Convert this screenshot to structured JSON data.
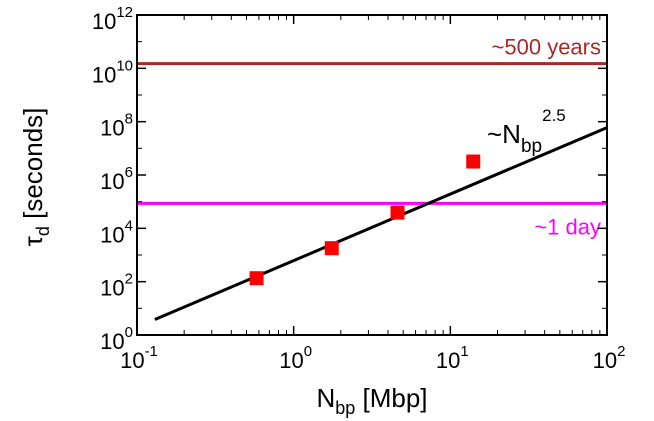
{
  "chart_data": {
    "type": "scatter",
    "x_scale": "log",
    "y_scale": "log",
    "xlim": [
      0.1,
      100
    ],
    "ylim": [
      1,
      1000000000000
    ],
    "grid": false,
    "x_ticks": [
      {
        "value": 0.1,
        "base": "10",
        "exp": "-1"
      },
      {
        "value": 1,
        "base": "10",
        "exp": "0"
      },
      {
        "value": 10,
        "base": "10",
        "exp": "1"
      },
      {
        "value": 100,
        "base": "10",
        "exp": "2"
      }
    ],
    "y_ticks": [
      {
        "value": 1,
        "base": "10",
        "exp": "0"
      },
      {
        "value": 100,
        "base": "10",
        "exp": "2"
      },
      {
        "value": 10000,
        "base": "10",
        "exp": "4"
      },
      {
        "value": 1000000,
        "base": "10",
        "exp": "6"
      },
      {
        "value": 100000000,
        "base": "10",
        "exp": "8"
      },
      {
        "value": 10000000000,
        "base": "10",
        "exp": "10"
      },
      {
        "value": 1000000000000,
        "base": "10",
        "exp": "12"
      }
    ],
    "xlabel": {
      "main": "N",
      "sub": "bp",
      "rest": " [Mbp]"
    },
    "ylabel": {
      "main": "τ",
      "sub": "d",
      "rest": " [seconds]"
    },
    "points": [
      {
        "x": 0.58,
        "y": 135,
        "color": "#ff0000"
      },
      {
        "x": 1.75,
        "y": 1800,
        "color": "#ff0000"
      },
      {
        "x": 4.6,
        "y": 39000,
        "color": "#ff0000"
      },
      {
        "x": 14,
        "y": 3200000,
        "y_err": [
          2600000,
          3800000
        ],
        "color": "#ff0000"
      }
    ],
    "fit_line": {
      "x": [
        0.13,
        100
      ],
      "y": [
        3.8,
        60000000
      ],
      "color": "#000000",
      "label": {
        "main": "~N",
        "sub": "bp",
        "sup": "2.5"
      }
    },
    "hlines": [
      {
        "y": 15000000000,
        "color": "#a52a2a",
        "label": "~500 years"
      },
      {
        "y": 86400,
        "color": "#ff00ff",
        "label": "~1 day"
      }
    ]
  }
}
